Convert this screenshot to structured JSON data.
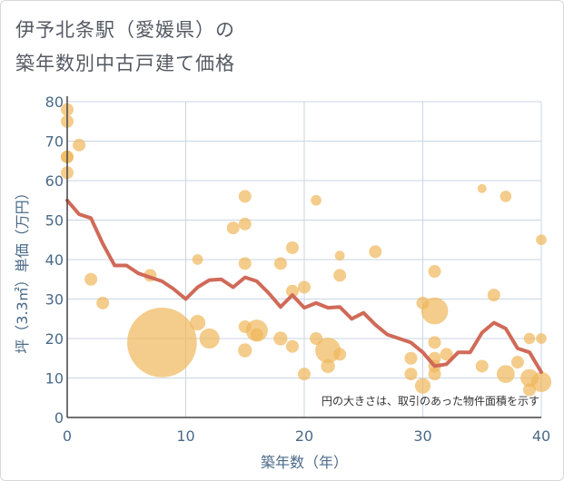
{
  "title_line1": "伊予北条駅（愛媛県）の",
  "title_line2": "築年数別中古戸建て価格",
  "chart_data": {
    "type": "scatter",
    "xlabel": "築年数（年）",
    "ylabel": "坪（3.3㎡）単価（万円）",
    "xlim": [
      0,
      40
    ],
    "ylim": [
      0,
      80
    ],
    "xticks": [
      "0",
      "10",
      "20",
      "30",
      "40"
    ],
    "yticks": [
      "0",
      "10",
      "20",
      "30",
      "40",
      "50",
      "60",
      "70",
      "80"
    ],
    "note": "円の大きさは、取引のあった物件面積を示す",
    "grid": true,
    "colors": {
      "bubble": "#f0b65a",
      "line": "#d06a58",
      "grid": "#c9d6e3",
      "axis": "#444444"
    },
    "bubbles": [
      {
        "x": 0,
        "y": 78,
        "size": 1
      },
      {
        "x": 0,
        "y": 75,
        "size": 1
      },
      {
        "x": 0,
        "y": 66,
        "size": 1
      },
      {
        "x": 0,
        "y": 66,
        "size": 1
      },
      {
        "x": 0,
        "y": 62,
        "size": 1
      },
      {
        "x": 1,
        "y": 69,
        "size": 1
      },
      {
        "x": 2,
        "y": 35,
        "size": 1
      },
      {
        "x": 3,
        "y": 29,
        "size": 1
      },
      {
        "x": 7,
        "y": 36,
        "size": 1
      },
      {
        "x": 8,
        "y": 19,
        "size": 30
      },
      {
        "x": 11,
        "y": 40,
        "size": 0.7
      },
      {
        "x": 11,
        "y": 24,
        "size": 1.5
      },
      {
        "x": 12,
        "y": 20,
        "size": 2.5
      },
      {
        "x": 14,
        "y": 48,
        "size": 1
      },
      {
        "x": 15,
        "y": 56,
        "size": 1
      },
      {
        "x": 15,
        "y": 49,
        "size": 1
      },
      {
        "x": 15,
        "y": 39,
        "size": 1
      },
      {
        "x": 15,
        "y": 23,
        "size": 1
      },
      {
        "x": 15,
        "y": 17,
        "size": 1.2
      },
      {
        "x": 16,
        "y": 22,
        "size": 3
      },
      {
        "x": 16,
        "y": 21,
        "size": 1
      },
      {
        "x": 18,
        "y": 39,
        "size": 1
      },
      {
        "x": 18,
        "y": 20,
        "size": 1.2
      },
      {
        "x": 19,
        "y": 43,
        "size": 1
      },
      {
        "x": 19,
        "y": 32,
        "size": 1
      },
      {
        "x": 19,
        "y": 18,
        "size": 1
      },
      {
        "x": 20,
        "y": 33,
        "size": 1
      },
      {
        "x": 20,
        "y": 11,
        "size": 1
      },
      {
        "x": 21,
        "y": 55,
        "size": 0.7
      },
      {
        "x": 21,
        "y": 20,
        "size": 1
      },
      {
        "x": 22,
        "y": 17,
        "size": 4
      },
      {
        "x": 22,
        "y": 13,
        "size": 1.2
      },
      {
        "x": 23,
        "y": 41,
        "size": 0.6
      },
      {
        "x": 23,
        "y": 36,
        "size": 1
      },
      {
        "x": 23,
        "y": 16,
        "size": 1
      },
      {
        "x": 26,
        "y": 42,
        "size": 1
      },
      {
        "x": 29,
        "y": 15,
        "size": 1
      },
      {
        "x": 29,
        "y": 11,
        "size": 1
      },
      {
        "x": 30,
        "y": 29,
        "size": 1
      },
      {
        "x": 30,
        "y": 8,
        "size": 1.5
      },
      {
        "x": 31,
        "y": 37,
        "size": 1
      },
      {
        "x": 31,
        "y": 27,
        "size": 4.5
      },
      {
        "x": 31,
        "y": 19,
        "size": 1
      },
      {
        "x": 31,
        "y": 15,
        "size": 1
      },
      {
        "x": 31,
        "y": 13,
        "size": 1
      },
      {
        "x": 31,
        "y": 11,
        "size": 1
      },
      {
        "x": 32,
        "y": 16,
        "size": 1
      },
      {
        "x": 35,
        "y": 58,
        "size": 0.5
      },
      {
        "x": 35,
        "y": 13,
        "size": 1
      },
      {
        "x": 36,
        "y": 31,
        "size": 1
      },
      {
        "x": 37,
        "y": 56,
        "size": 0.8
      },
      {
        "x": 37,
        "y": 11,
        "size": 2
      },
      {
        "x": 38,
        "y": 14,
        "size": 1
      },
      {
        "x": 39,
        "y": 20,
        "size": 0.8
      },
      {
        "x": 39,
        "y": 10,
        "size": 2
      },
      {
        "x": 39,
        "y": 7,
        "size": 1
      },
      {
        "x": 40,
        "y": 45,
        "size": 0.7
      },
      {
        "x": 40,
        "y": 20,
        "size": 0.7
      },
      {
        "x": 40,
        "y": 9,
        "size": 2.5
      }
    ],
    "series": [
      {
        "x": [
          0,
          1,
          2,
          3,
          4,
          5,
          6,
          7,
          8,
          9,
          10,
          11,
          12,
          13,
          14,
          15,
          16,
          17,
          18,
          19,
          20,
          21,
          22,
          23,
          24,
          25,
          26,
          27,
          28,
          29,
          30,
          31,
          32,
          33,
          34,
          35,
          36,
          37,
          38,
          39,
          40
        ],
        "values": [
          55,
          51.5,
          50.5,
          44,
          38.5,
          38.5,
          36.5,
          35.5,
          34.5,
          32.5,
          30,
          33,
          34.8,
          35,
          33,
          35.5,
          34.5,
          31.5,
          28,
          31,
          27.8,
          29,
          27.8,
          28,
          25,
          26.5,
          23.5,
          21,
          20,
          19,
          16.5,
          13,
          13.5,
          16.5,
          16.5,
          21.5,
          24,
          22.5,
          17.5,
          16.5,
          11.5
        ]
      }
    ]
  }
}
